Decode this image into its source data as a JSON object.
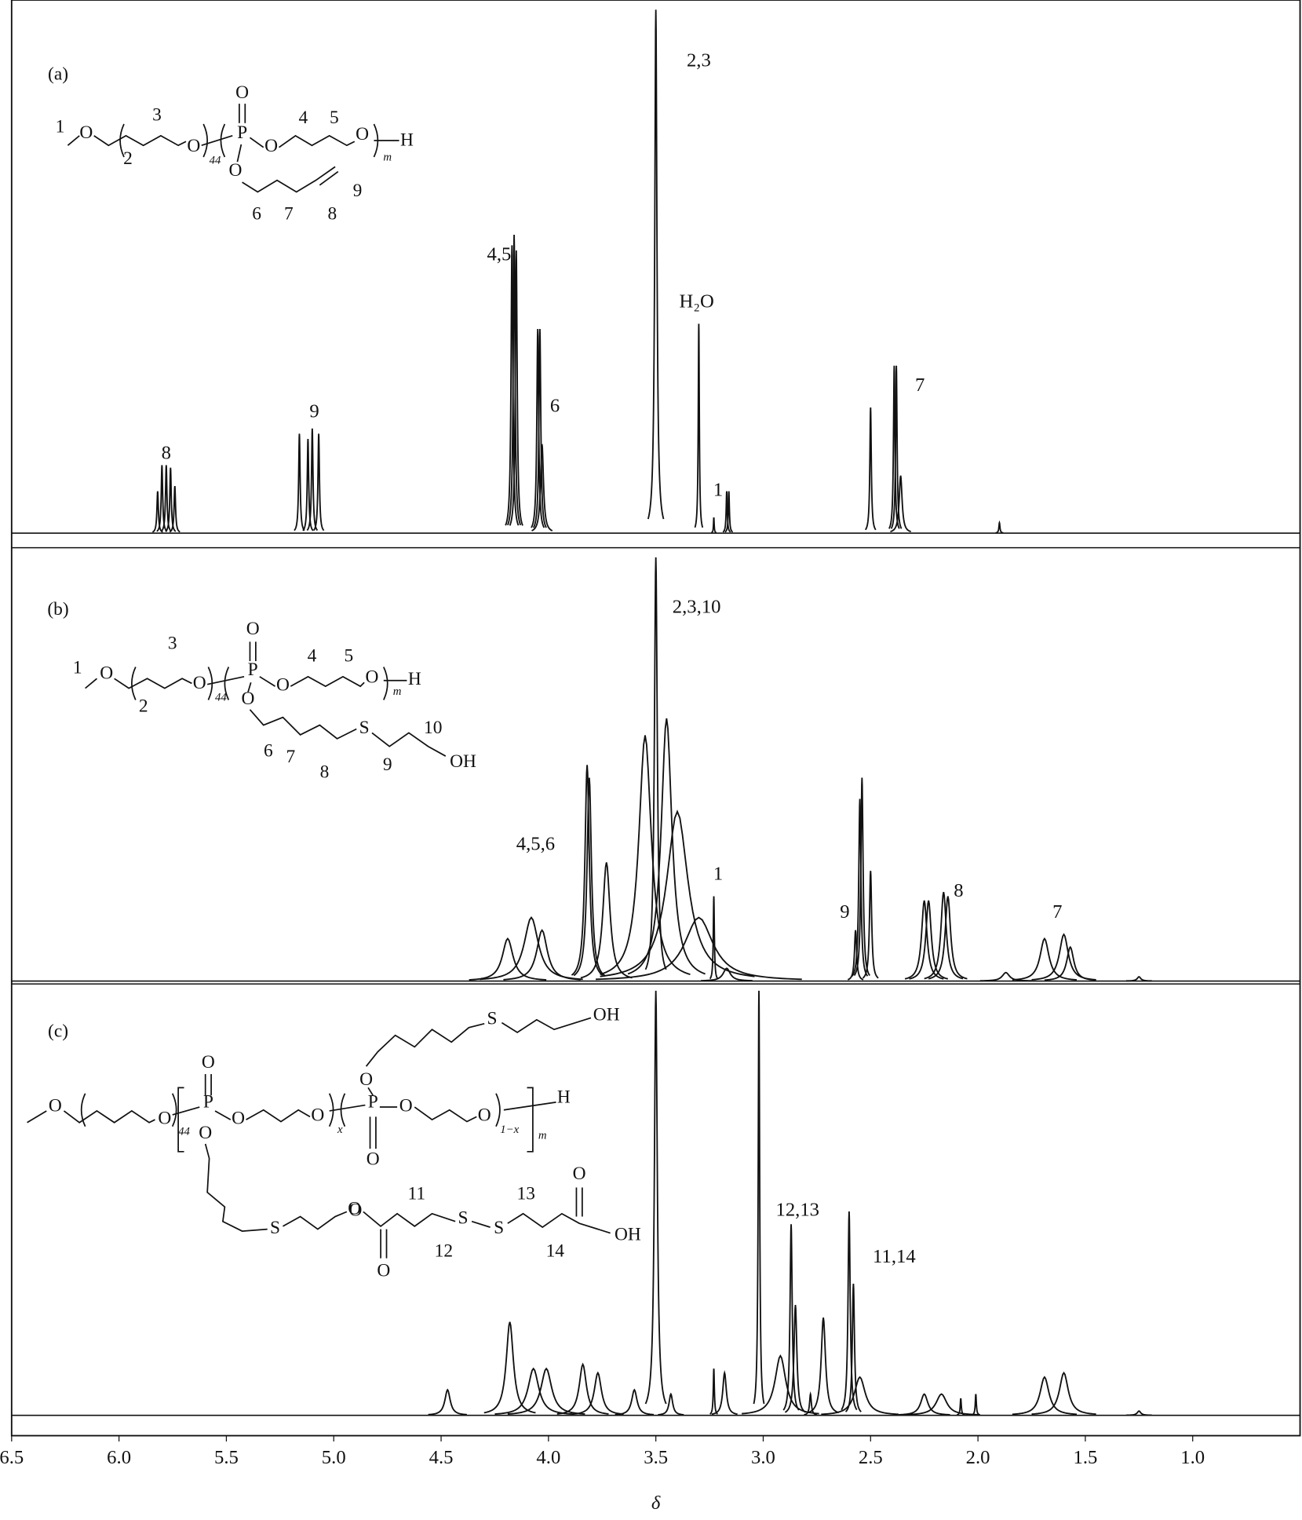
{
  "chart_data": {
    "type": "spectrum",
    "xlabel": "δ",
    "xlim": [
      6.5,
      0.5
    ],
    "xticks": [
      6.5,
      {
        "value": 6,
        "label": "6.0"
      },
      5.5,
      {
        "value": 5,
        "label": "5.0"
      },
      4.5,
      {
        "value": 4,
        "label": "4.0"
      },
      3.5,
      {
        "value": 3,
        "label": "3.0"
      },
      2.5,
      {
        "value": 2,
        "label": "2.0"
      },
      1.5,
      {
        "value": 1,
        "label": "1.0"
      }
    ],
    "panels": [
      {
        "label": "(a)",
        "ylim": [
          0,
          100
        ],
        "color": "#111111",
        "x": [
          5.82,
          5.8,
          5.78,
          5.76,
          5.74,
          5.16,
          5.12,
          5.1,
          5.07,
          4.17,
          4.16,
          4.15,
          4.05,
          4.04,
          4.03,
          3.5,
          3.3,
          3.23,
          3.17,
          3.16,
          2.5,
          2.39,
          2.38,
          2.36,
          1.9
        ],
        "values": [
          8,
          13,
          13,
          12.5,
          9,
          19,
          18,
          20,
          19,
          55,
          57,
          54,
          39,
          39,
          17,
          100,
          40,
          3,
          8,
          8,
          24,
          32,
          32,
          11,
          2
        ],
        "widths": [
          0.004,
          0.004,
          0.004,
          0.004,
          0.004,
          0.004,
          0.004,
          0.004,
          0.004,
          0.005,
          0.005,
          0.005,
          0.005,
          0.005,
          0.008,
          0.006,
          0.003,
          0.002,
          0.003,
          0.003,
          0.004,
          0.004,
          0.004,
          0.008,
          0.003
        ],
        "annotations": [
          {
            "text": "2,3",
            "x": 3.3,
            "y": 90
          },
          {
            "text": "4,5",
            "x": 4.23,
            "y": 53
          },
          {
            "text": "6",
            "x": 3.97,
            "y": 24
          },
          {
            "text": "H₂O",
            "x": 3.31,
            "y": 44
          },
          {
            "text": "9",
            "x": 5.09,
            "y": 23
          },
          {
            "text": "8",
            "x": 5.78,
            "y": 15
          },
          {
            "text": "1",
            "x": 3.21,
            "y": 8
          },
          {
            "text": "7",
            "x": 2.27,
            "y": 28
          }
        ],
        "structure": [
          "1",
          "O",
          "3",
          "2",
          "O",
          "44",
          "P",
          "O",
          "O",
          "4",
          "5",
          "O",
          "m",
          "H",
          "O",
          "6",
          "7",
          "8",
          "9"
        ]
      },
      {
        "label": "(b)",
        "ylim": [
          0,
          100
        ],
        "color": "#111111",
        "x": [
          4.19,
          4.08,
          4.03,
          3.82,
          3.81,
          3.73,
          3.55,
          3.5,
          3.45,
          3.4,
          3.3,
          3.23,
          3.17,
          2.57,
          2.55,
          2.54,
          2.5,
          2.25,
          2.23,
          2.16,
          2.14,
          1.87,
          1.69,
          1.6,
          1.57,
          1.25
        ],
        "values": [
          10,
          15,
          12,
          51,
          48,
          28,
          58,
          100,
          62,
          40,
          15,
          20,
          3,
          12,
          43,
          48,
          26,
          19,
          19,
          21,
          20,
          2,
          10,
          11,
          8,
          1
        ],
        "widths": [
          0.03,
          0.04,
          0.03,
          0.012,
          0.012,
          0.02,
          0.035,
          0.008,
          0.03,
          0.06,
          0.08,
          0.003,
          0.02,
          0.006,
          0.006,
          0.006,
          0.006,
          0.015,
          0.015,
          0.015,
          0.015,
          0.02,
          0.025,
          0.025,
          0.02,
          0.01
        ],
        "annotations": [
          {
            "text": "2,3,10",
            "x": 3.31,
            "y": 88
          },
          {
            "text": "4,5,6",
            "x": 4.06,
            "y": 32
          },
          {
            "text": "1",
            "x": 3.21,
            "y": 25
          },
          {
            "text": "9",
            "x": 2.62,
            "y": 16
          },
          {
            "text": "8",
            "x": 2.09,
            "y": 21
          },
          {
            "text": "7",
            "x": 1.63,
            "y": 16
          }
        ],
        "structure": [
          "1",
          "O",
          "3",
          "2",
          "O",
          "44",
          "P",
          "O",
          "O",
          "4",
          "5",
          "O",
          "m",
          "H",
          "O",
          "6",
          "7",
          "8",
          "S",
          "9",
          "10",
          "OH"
        ]
      },
      {
        "label": "(c)",
        "ylim": [
          0,
          100
        ],
        "color": "#111111",
        "x": [
          4.47,
          4.18,
          4.07,
          4.01,
          3.84,
          3.77,
          3.6,
          3.5,
          3.43,
          3.23,
          3.18,
          3.02,
          2.92,
          2.87,
          2.85,
          2.78,
          2.72,
          2.6,
          2.58,
          2.55,
          2.25,
          2.17,
          2.08,
          2.01,
          1.69,
          1.6,
          1.25
        ],
        "values": [
          6,
          22,
          11,
          11,
          12,
          10,
          6,
          100,
          5,
          11,
          10,
          100,
          14,
          45,
          26,
          5,
          23,
          48,
          31,
          9,
          5,
          5,
          4,
          5,
          9,
          10,
          1
        ],
        "widths": [
          0.015,
          0.02,
          0.03,
          0.03,
          0.02,
          0.02,
          0.015,
          0.008,
          0.01,
          0.003,
          0.01,
          0.004,
          0.03,
          0.006,
          0.008,
          0.005,
          0.012,
          0.006,
          0.006,
          0.03,
          0.02,
          0.03,
          0.003,
          0.003,
          0.025,
          0.025,
          0.01
        ],
        "annotations": [
          {
            "text": "12,13",
            "x": 2.84,
            "y": 48
          },
          {
            "text": "11,14",
            "x": 2.39,
            "y": 37
          }
        ],
        "structure": [
          "O",
          "O",
          "44",
          "P",
          "O",
          "O",
          "O",
          "O",
          "x",
          "P",
          "O",
          "O",
          "O",
          "O",
          "1−x",
          "m",
          "H",
          "S",
          "OH",
          "O",
          "S",
          "O",
          "O",
          "11",
          "S",
          "S",
          "13",
          "12",
          "14",
          "O",
          "OH"
        ]
      }
    ]
  }
}
